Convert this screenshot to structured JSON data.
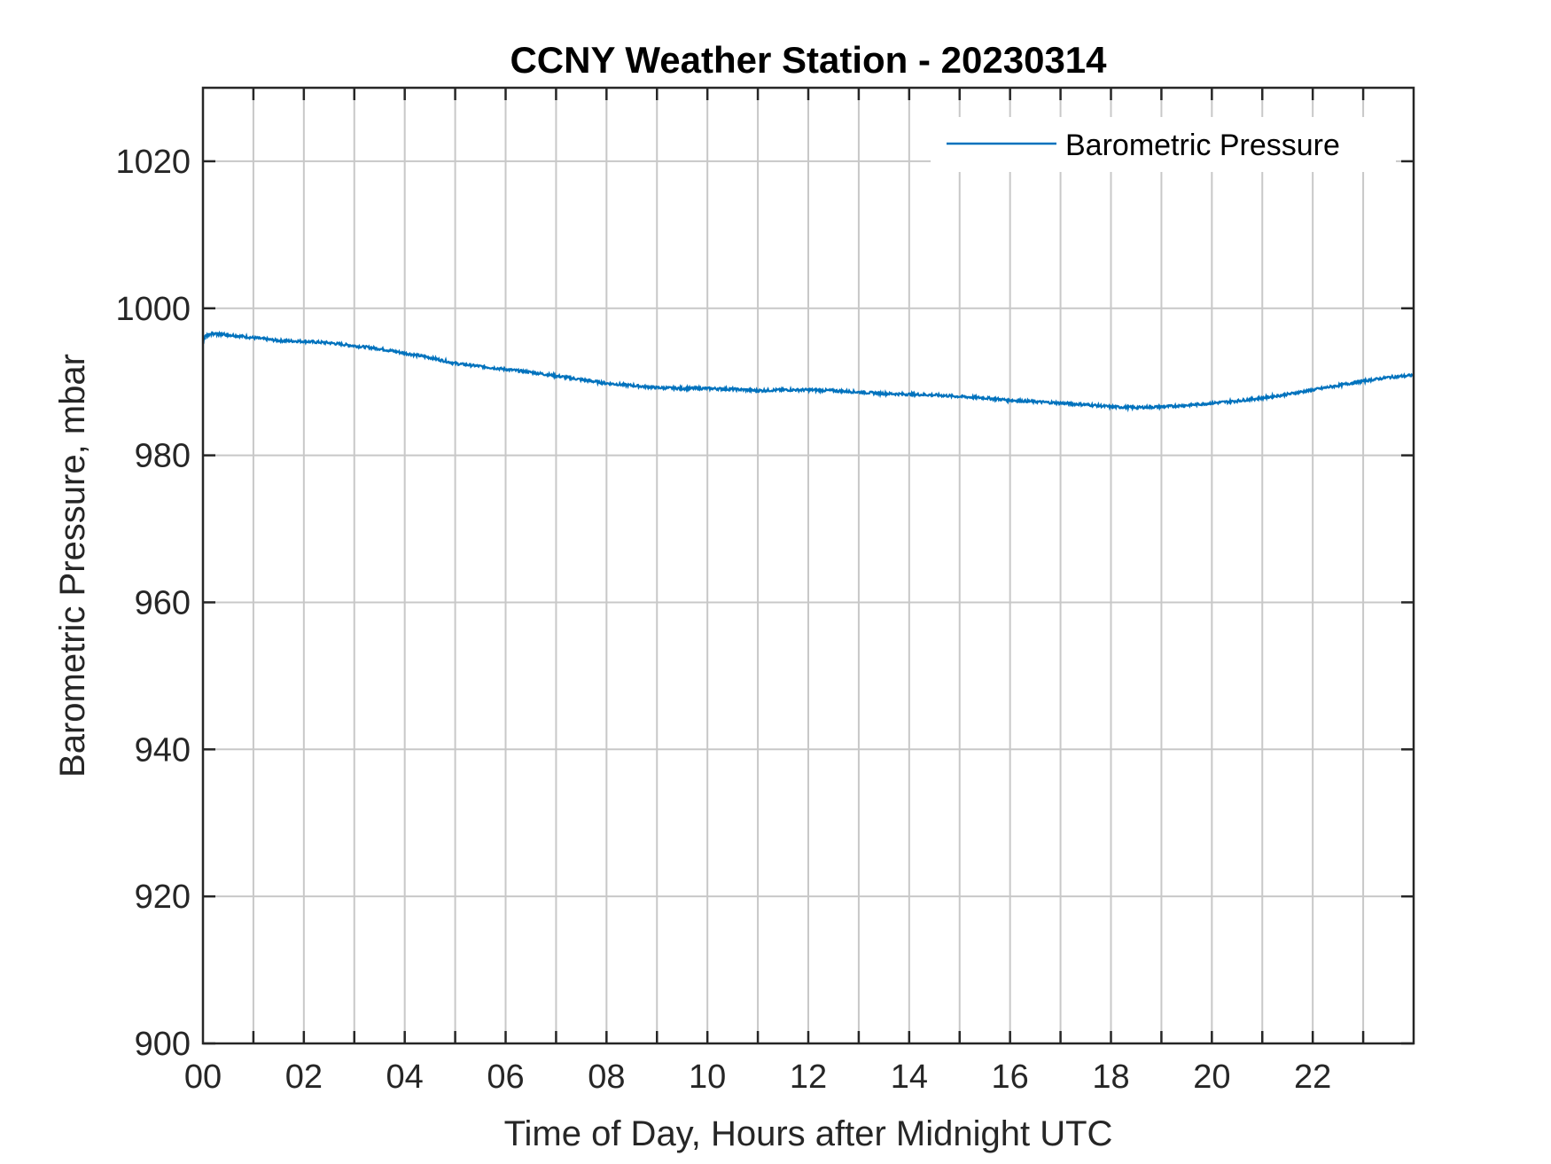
{
  "chart_data": {
    "type": "line",
    "title": "CCNY Weather Station - 20230314",
    "xlabel": "Time of Day, Hours after Midnight UTC",
    "ylabel": "Barometric Pressure, mbar",
    "xlim": [
      0,
      24
    ],
    "ylim": [
      900,
      1030
    ],
    "xticks": [
      0,
      2,
      4,
      6,
      8,
      10,
      12,
      14,
      16,
      18,
      20,
      22
    ],
    "xticklabels": [
      "00",
      "02",
      "04",
      "06",
      "08",
      "10",
      "12",
      "14",
      "16",
      "18",
      "20",
      "22"
    ],
    "yticks": [
      900,
      920,
      940,
      960,
      980,
      1000,
      1020
    ],
    "yticklabels": [
      "900",
      "920",
      "940",
      "960",
      "980",
      "1000",
      "1020"
    ],
    "grid": true,
    "minor_xgrid_step": 1,
    "legend_position": "top-right",
    "line_color": "#0072bd",
    "series": [
      {
        "name": "Barometric Pressure",
        "x": [
          0,
          0.05,
          0.2,
          0.5,
          1.0,
          1.5,
          2.0,
          2.5,
          3.0,
          3.5,
          4.0,
          4.5,
          5.0,
          5.5,
          6.0,
          6.5,
          7.0,
          7.5,
          8.0,
          8.5,
          9.0,
          9.5,
          10.0,
          10.5,
          11.0,
          11.5,
          12.0,
          12.5,
          13.0,
          13.5,
          14.0,
          14.5,
          15.0,
          15.5,
          16.0,
          16.5,
          17.0,
          17.5,
          18.0,
          18.5,
          19.0,
          19.5,
          20.0,
          20.5,
          21.0,
          21.5,
          22.0,
          22.5,
          23.0,
          23.5,
          24.0
        ],
        "y": [
          995.5,
          996.3,
          996.6,
          996.4,
          996.0,
          995.6,
          995.5,
          995.3,
          994.9,
          994.5,
          993.9,
          993.3,
          992.5,
          992.1,
          991.7,
          991.3,
          990.8,
          990.3,
          989.8,
          989.5,
          989.2,
          989.1,
          989.1,
          989.0,
          988.8,
          988.9,
          988.9,
          988.8,
          988.6,
          988.4,
          988.3,
          988.2,
          988.0,
          987.8,
          987.5,
          987.3,
          987.1,
          986.9,
          986.6,
          986.5,
          986.6,
          986.8,
          987.1,
          987.4,
          987.8,
          988.3,
          988.9,
          989.5,
          990.1,
          990.6,
          990.9
        ]
      }
    ]
  }
}
